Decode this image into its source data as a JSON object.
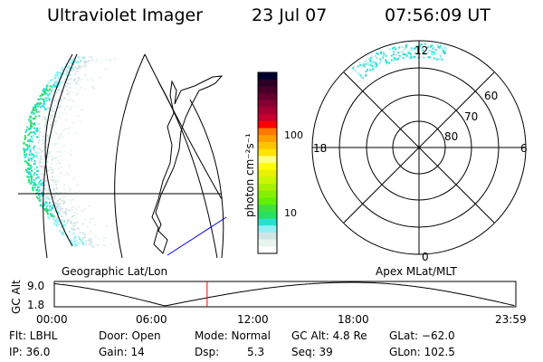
{
  "header": {
    "instrument": "Ultraviolet Imager",
    "date": "23 Jul 07",
    "time": "07:56:09 UT"
  },
  "geo_map": {
    "label": "Geographic Lat/Lon"
  },
  "colorbar": {
    "unit_label": "photon cm⁻²s⁻¹",
    "ticks": [
      "100",
      "10"
    ],
    "colors": [
      "#00002e",
      "#2a0026",
      "#48002a",
      "#66002e",
      "#880030",
      "#a80030",
      "#c80030",
      "#ff0000",
      "#ff7800",
      "#ffa000",
      "#ffc400",
      "#ffe400",
      "#ffff80",
      "#ffff00",
      "#e6f000",
      "#c8f800",
      "#a8f000",
      "#84f000",
      "#60f000",
      "#40e040",
      "#28e060",
      "#28e0d0",
      "#90f0f4",
      "#d0e4e4",
      "#e8f4ee",
      "#ffffff"
    ]
  },
  "polar_map": {
    "label": "Apex MLat/MLT",
    "mlt_labels": [
      "12",
      "18",
      "6",
      "0"
    ],
    "lat_labels": [
      "60",
      "70",
      "80"
    ]
  },
  "altitude_plot": {
    "ylabel": "GC Alt",
    "yticks": [
      "9.0",
      "1.8"
    ],
    "xticks": [
      "00:00",
      "06:00",
      "12:00",
      "18:00",
      "23:59"
    ],
    "current_time_hours": 7.94,
    "cursor_color": "#ff0000"
  },
  "status": {
    "filter": "Flt: LBHL",
    "ip": "IP: 36.0",
    "door": "Door: Open",
    "gain": "Gain: 14",
    "mode": "Mode: Normal",
    "dsp_label": "Dsp:",
    "dsp_value": "5.3",
    "gc_alt": "GC Alt: 4.8 Re",
    "seq": "Seq: 39",
    "glat": "GLat: −62.0",
    "glon": "GLon: 102.5"
  }
}
